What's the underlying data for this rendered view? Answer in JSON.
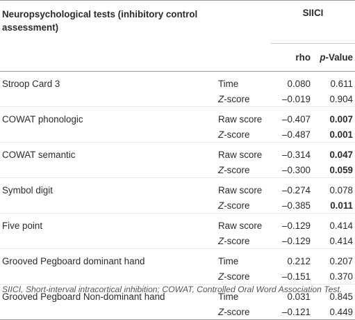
{
  "header": {
    "title": "Neuropsychological tests (inhibitory control assessment)",
    "group": "SIICI",
    "rho": "rho",
    "pvalue": "p-Value"
  },
  "rows": [
    {
      "test": "Stroop Card 3",
      "measures": [
        {
          "label": "Time",
          "rho": "0.080",
          "p": "0.611",
          "bold": false
        },
        {
          "label": "Z-score",
          "rho": "–0.019",
          "p": "0.904",
          "bold": false
        }
      ]
    },
    {
      "test": "COWAT phonologic",
      "measures": [
        {
          "label": "Raw score",
          "rho": "–0.407",
          "p": "0.007",
          "bold": true
        },
        {
          "label": "Z-score",
          "rho": "–0.487",
          "p": "0.001",
          "bold": true
        }
      ]
    },
    {
      "test": "COWAT semantic",
      "measures": [
        {
          "label": "Raw score",
          "rho": "–0.314",
          "p": "0.047",
          "bold": true
        },
        {
          "label": "Z-score",
          "rho": "–0.300",
          "p": "0.059",
          "bold": true
        }
      ]
    },
    {
      "test": "Symbol digit",
      "measures": [
        {
          "label": "Raw score",
          "rho": "–0.274",
          "p": "0.078",
          "bold": false
        },
        {
          "label": "Z-score",
          "rho": "–0.385",
          "p": "0.011",
          "bold": true
        }
      ]
    },
    {
      "test": "Five point",
      "measures": [
        {
          "label": "Raw score",
          "rho": "–0.129",
          "p": "0.414",
          "bold": false
        },
        {
          "label": "Z-score",
          "rho": "–0.129",
          "p": "0.414",
          "bold": false
        }
      ]
    },
    {
      "test": "Grooved Pegboard dominant hand",
      "measures": [
        {
          "label": "Time",
          "rho": "0.212",
          "p": "0.207",
          "bold": false
        },
        {
          "label": "Z-score",
          "rho": "–0.151",
          "p": "0.370",
          "bold": false
        }
      ]
    },
    {
      "test": "Grooved Pegboard Non-dominant hand",
      "measures": [
        {
          "label": "Time",
          "rho": "0.031",
          "p": "0.845",
          "bold": false
        },
        {
          "label": "Z-score",
          "rho": "–0.121",
          "p": "0.449",
          "bold": false
        }
      ]
    }
  ],
  "footnote": "SIICI, Short-interval intracortical inhibition; COWAT, Controlled Oral Word Association Test."
}
